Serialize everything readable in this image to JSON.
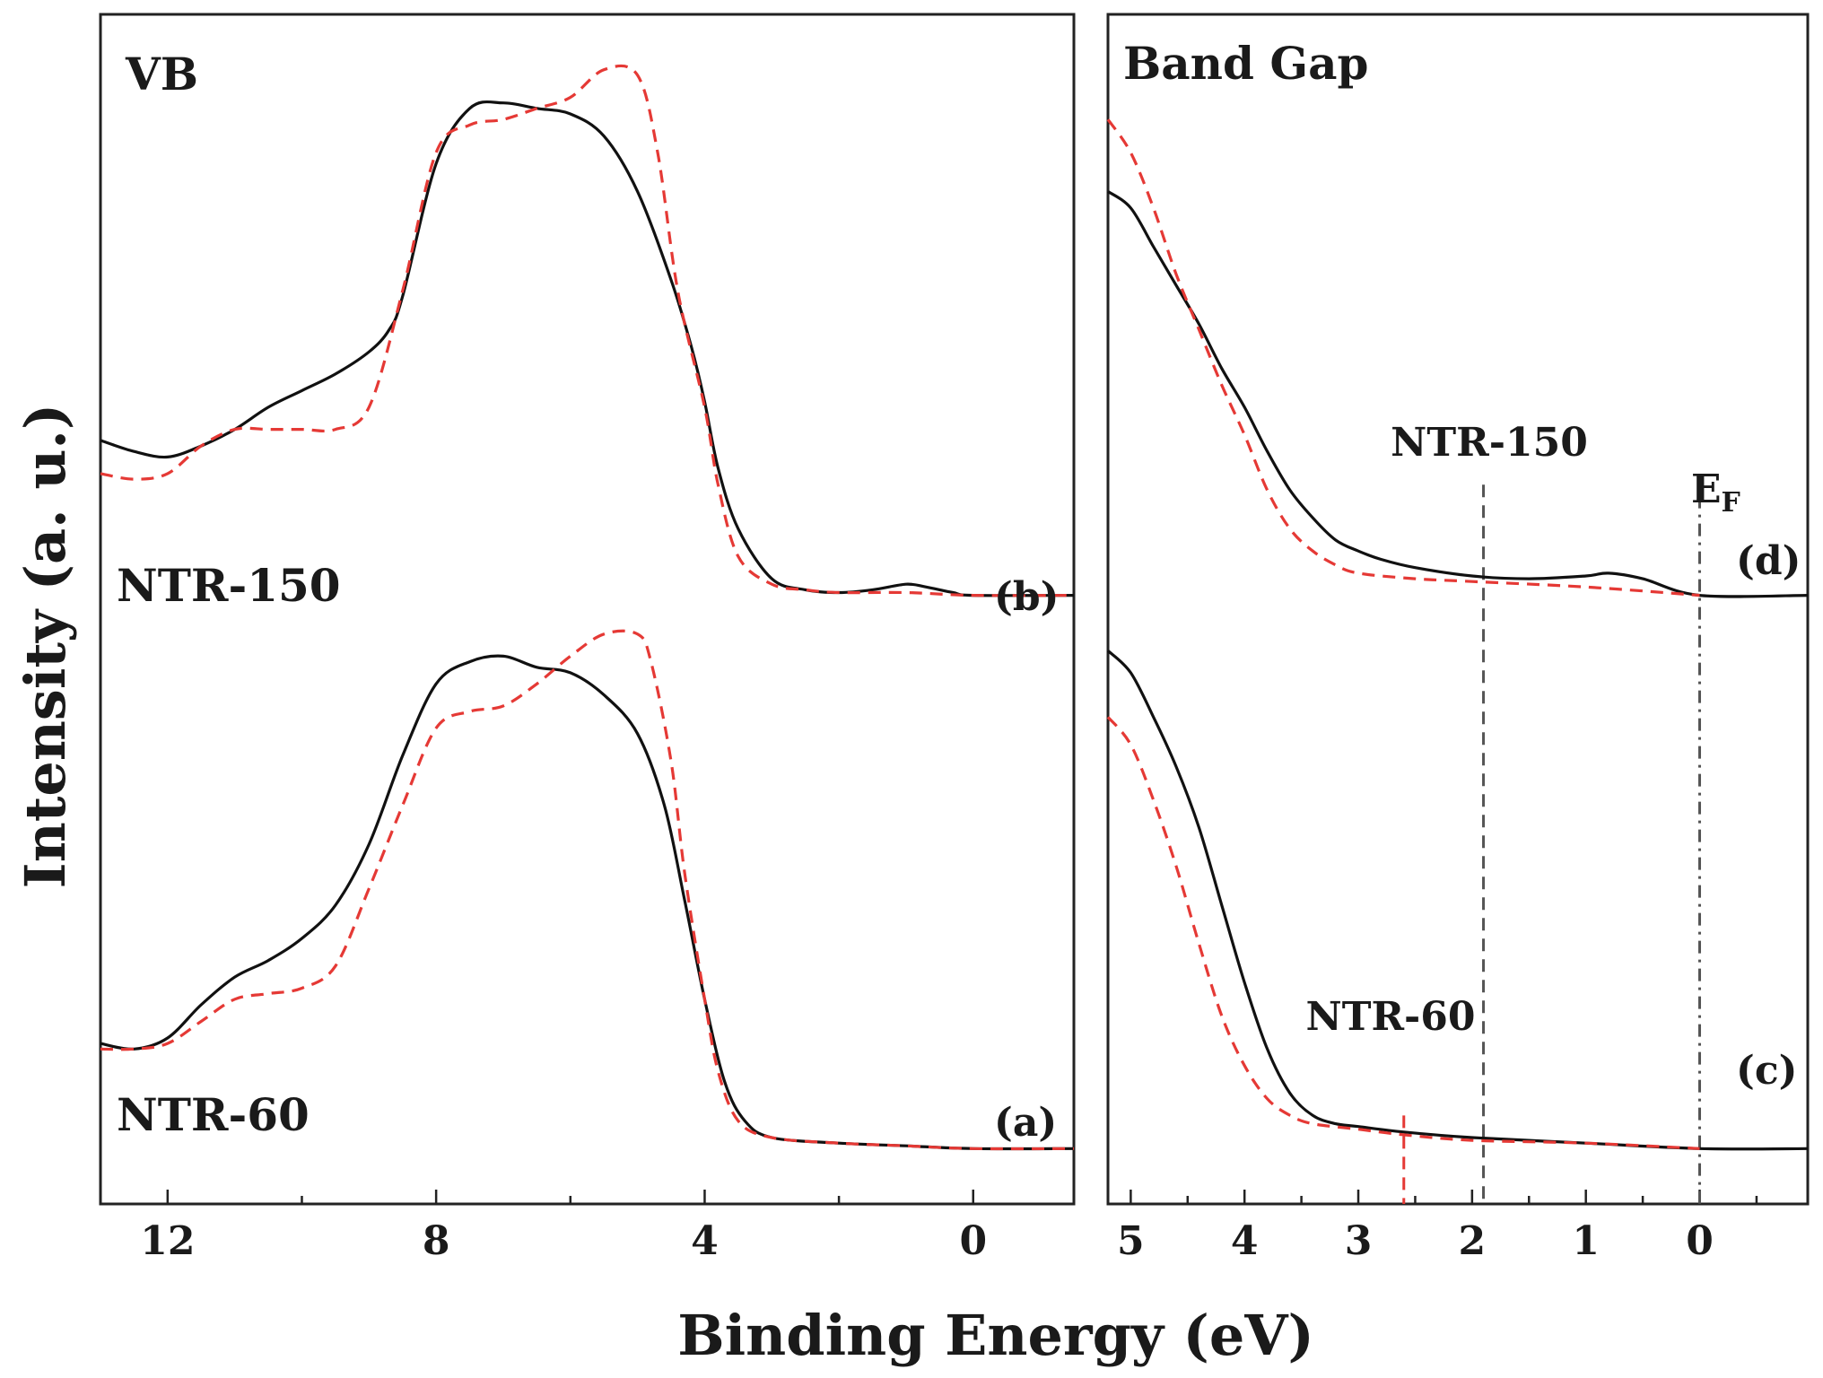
{
  "chart_data": [
    {
      "id": "vb",
      "type": "line",
      "title": "VB",
      "xlabel": "Binding Energy (eV)",
      "ylabel": "Intensity (a. u.)",
      "xlim": [
        13,
        -1.5
      ],
      "x_reversed": true,
      "ylim": [
        -0.1,
        2.05
      ],
      "x_ticks": [
        12,
        8,
        4,
        0
      ],
      "y_ticks": false,
      "curve_labels": [
        {
          "text": "NTR-150",
          "tag": "(b)",
          "offset": 1.0,
          "at": [
            11.3,
            1.1
          ]
        },
        {
          "text": "NTR-60",
          "tag": "(a)",
          "offset": 0.0,
          "at": [
            11.3,
            0.12
          ]
        }
      ],
      "series": [
        {
          "name": "NTR-60 solid",
          "style": "solid",
          "color": "#111111",
          "offset": 0.0,
          "x": [
            13.0,
            12.5,
            12.0,
            11.5,
            11.0,
            10.5,
            10.0,
            9.5,
            9.0,
            8.5,
            8.0,
            7.5,
            7.0,
            6.5,
            6.0,
            5.5,
            5.0,
            4.6,
            4.3,
            4.0,
            3.7,
            3.4,
            3.0,
            2.0,
            1.0,
            0.0,
            -1.5
          ],
          "y": [
            0.19,
            0.18,
            0.2,
            0.26,
            0.31,
            0.34,
            0.38,
            0.44,
            0.55,
            0.71,
            0.84,
            0.88,
            0.89,
            0.87,
            0.86,
            0.82,
            0.75,
            0.62,
            0.45,
            0.27,
            0.12,
            0.05,
            0.02,
            0.01,
            0.005,
            0.0,
            0.0
          ]
        },
        {
          "name": "NTR-60 dashed",
          "style": "dashed",
          "color": "#e53935",
          "offset": 0.0,
          "x": [
            13.0,
            12.5,
            12.0,
            11.5,
            11.0,
            10.5,
            10.0,
            9.5,
            9.0,
            8.5,
            8.0,
            7.5,
            7.0,
            6.5,
            6.0,
            5.5,
            5.0,
            4.8,
            4.5,
            4.3,
            4.0,
            3.8,
            3.5,
            3.0,
            2.0,
            1.0,
            0.0,
            -1.5
          ],
          "y": [
            0.18,
            0.18,
            0.19,
            0.23,
            0.27,
            0.28,
            0.29,
            0.33,
            0.47,
            0.62,
            0.76,
            0.79,
            0.8,
            0.84,
            0.89,
            0.93,
            0.93,
            0.88,
            0.7,
            0.5,
            0.27,
            0.14,
            0.05,
            0.02,
            0.01,
            0.005,
            0.0,
            0.0
          ]
        },
        {
          "name": "NTR-150 solid",
          "style": "solid",
          "color": "#111111",
          "offset": 1.0,
          "x": [
            13.0,
            12.5,
            12.0,
            11.5,
            11.0,
            10.5,
            10.0,
            9.5,
            9.0,
            8.7,
            8.5,
            8.0,
            7.5,
            7.0,
            6.5,
            6.0,
            5.5,
            5.0,
            4.5,
            4.2,
            4.0,
            3.8,
            3.5,
            3.0,
            2.5,
            2.0,
            1.5,
            1.0,
            0.7,
            0.3,
            0.0,
            -1.5
          ],
          "y": [
            0.28,
            0.26,
            0.25,
            0.27,
            0.3,
            0.34,
            0.37,
            0.4,
            0.44,
            0.48,
            0.54,
            0.78,
            0.88,
            0.89,
            0.88,
            0.87,
            0.83,
            0.73,
            0.57,
            0.45,
            0.35,
            0.23,
            0.12,
            0.03,
            0.01,
            0.005,
            0.01,
            0.02,
            0.015,
            0.005,
            0.0,
            0.0
          ]
        },
        {
          "name": "NTR-150 dashed",
          "style": "dashed",
          "color": "#e53935",
          "offset": 1.0,
          "x": [
            13.0,
            12.5,
            12.0,
            11.5,
            11.0,
            10.5,
            10.0,
            9.5,
            9.0,
            8.5,
            8.0,
            7.5,
            7.0,
            6.5,
            6.0,
            5.5,
            5.0,
            4.7,
            4.4,
            4.0,
            3.8,
            3.5,
            3.0,
            2.5,
            2.0,
            1.0,
            0.0,
            -1.5
          ],
          "y": [
            0.22,
            0.21,
            0.22,
            0.27,
            0.3,
            0.3,
            0.3,
            0.3,
            0.34,
            0.55,
            0.8,
            0.85,
            0.86,
            0.88,
            0.9,
            0.95,
            0.94,
            0.8,
            0.55,
            0.34,
            0.2,
            0.07,
            0.02,
            0.01,
            0.005,
            0.005,
            0.0,
            0.0
          ]
        }
      ]
    },
    {
      "id": "band-gap",
      "type": "line",
      "title": "Band Gap",
      "xlim": [
        5.2,
        -0.95
      ],
      "x_reversed": true,
      "ylim": [
        -0.1,
        2.05
      ],
      "x_ticks": [
        5,
        4,
        3,
        2,
        1,
        0
      ],
      "y_ticks": false,
      "curve_labels": [
        {
          "text": "NTR-150",
          "tag": "(d)",
          "offset": 1.0,
          "at": [
            1.9,
            1.29
          ]
        },
        {
          "text": "NTR-60",
          "tag": "(c)",
          "offset": 0.0,
          "at": [
            2.6,
            0.3
          ]
        }
      ],
      "markers": [
        {
          "x": 2.6,
          "y_range": [
            -0.1,
            0.06
          ],
          "color": "#e53935",
          "style": "dashed",
          "label": "NTR-60"
        },
        {
          "x": 1.9,
          "y_range": [
            -0.1,
            1.2
          ],
          "color": "#555555",
          "style": "dashed",
          "label": "NTR-150"
        },
        {
          "x": 0.0,
          "y_range": [
            -0.1,
            1.18
          ],
          "color": "#555555",
          "style": "dashdot",
          "label": "EF"
        }
      ],
      "fermi_label": "EF",
      "series": [
        {
          "name": "(c) solid",
          "style": "solid",
          "color": "#111111",
          "offset": 0.0,
          "x": [
            5.2,
            5.0,
            4.8,
            4.6,
            4.4,
            4.2,
            4.0,
            3.8,
            3.6,
            3.4,
            3.2,
            3.0,
            2.6,
            2.0,
            1.0,
            0.0,
            -0.95
          ],
          "y": [
            0.9,
            0.86,
            0.78,
            0.69,
            0.58,
            0.44,
            0.3,
            0.18,
            0.1,
            0.06,
            0.045,
            0.04,
            0.03,
            0.02,
            0.01,
            0.0,
            0.0
          ]
        },
        {
          "name": "(c) dashed",
          "style": "dashed",
          "color": "#e53935",
          "offset": 0.0,
          "x": [
            5.2,
            5.0,
            4.8,
            4.6,
            4.4,
            4.2,
            4.0,
            3.8,
            3.6,
            3.4,
            3.0,
            2.6,
            2.0,
            1.0,
            0.0
          ],
          "y": [
            0.78,
            0.73,
            0.63,
            0.51,
            0.37,
            0.24,
            0.15,
            0.09,
            0.06,
            0.045,
            0.035,
            0.025,
            0.015,
            0.01,
            0.0
          ]
        },
        {
          "name": "(d) solid",
          "style": "solid",
          "color": "#111111",
          "offset": 1.0,
          "x": [
            5.2,
            5.0,
            4.8,
            4.6,
            4.4,
            4.2,
            4.0,
            3.8,
            3.6,
            3.4,
            3.2,
            3.0,
            2.8,
            2.5,
            2.0,
            1.5,
            1.0,
            0.8,
            0.5,
            0.0,
            -0.95
          ],
          "y": [
            0.73,
            0.7,
            0.63,
            0.56,
            0.49,
            0.41,
            0.34,
            0.26,
            0.19,
            0.14,
            0.1,
            0.08,
            0.065,
            0.05,
            0.035,
            0.03,
            0.035,
            0.04,
            0.03,
            0.0,
            0.0
          ]
        },
        {
          "name": "(d) dashed",
          "style": "dashed",
          "color": "#e53935",
          "offset": 1.0,
          "x": [
            5.2,
            5.0,
            4.8,
            4.6,
            4.4,
            4.2,
            4.0,
            3.8,
            3.6,
            3.4,
            3.2,
            3.0,
            2.5,
            2.0,
            1.0,
            0.0
          ],
          "y": [
            0.86,
            0.8,
            0.7,
            0.58,
            0.48,
            0.38,
            0.29,
            0.19,
            0.12,
            0.08,
            0.055,
            0.04,
            0.03,
            0.025,
            0.015,
            0.0
          ]
        }
      ]
    }
  ]
}
